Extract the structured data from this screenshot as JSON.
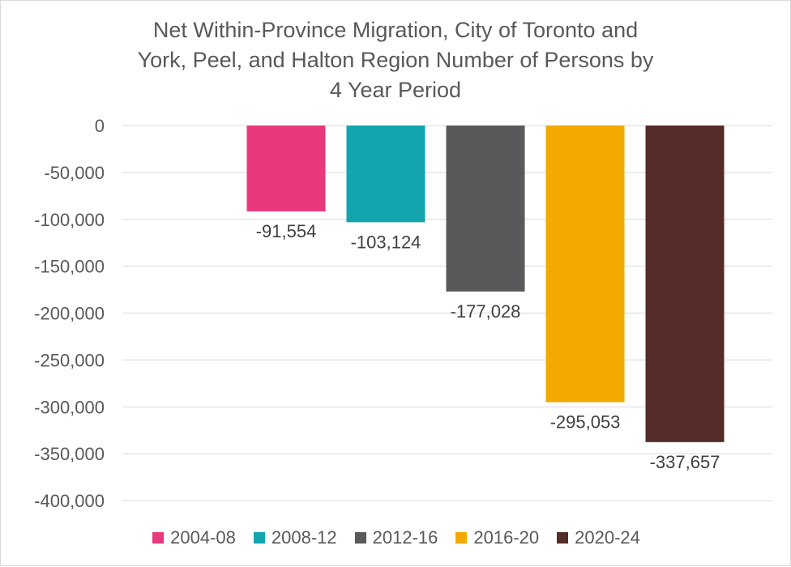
{
  "chart_data": {
    "type": "bar",
    "title_lines": [
      "Net Within-Province Migration, City of Toronto and",
      "York, Peel, and Halton Region Number of Persons by",
      "4 Year Period"
    ],
    "xlabel": "",
    "ylabel": "",
    "ylim": [
      -400000,
      0
    ],
    "ytick_step": 50000,
    "yticks": [
      "0",
      "-50,000",
      "-100,000",
      "-150,000",
      "-200,000",
      "-250,000",
      "-300,000",
      "-350,000",
      "-400,000"
    ],
    "grid": true,
    "legend_position": "bottom",
    "series": [
      {
        "name": "2004-08",
        "value": -91554,
        "label": "-91,554",
        "color": "#E8397D"
      },
      {
        "name": "2008-12",
        "value": -103124,
        "label": "-103,124",
        "color": "#12A5AE"
      },
      {
        "name": "2012-16",
        "value": -177028,
        "label": "-177,028",
        "color": "#59595B"
      },
      {
        "name": "2016-20",
        "value": -295053,
        "label": "-295,053",
        "color": "#F2A900"
      },
      {
        "name": "2020-24",
        "value": -337657,
        "label": "-337,657",
        "color": "#552C27"
      }
    ]
  }
}
